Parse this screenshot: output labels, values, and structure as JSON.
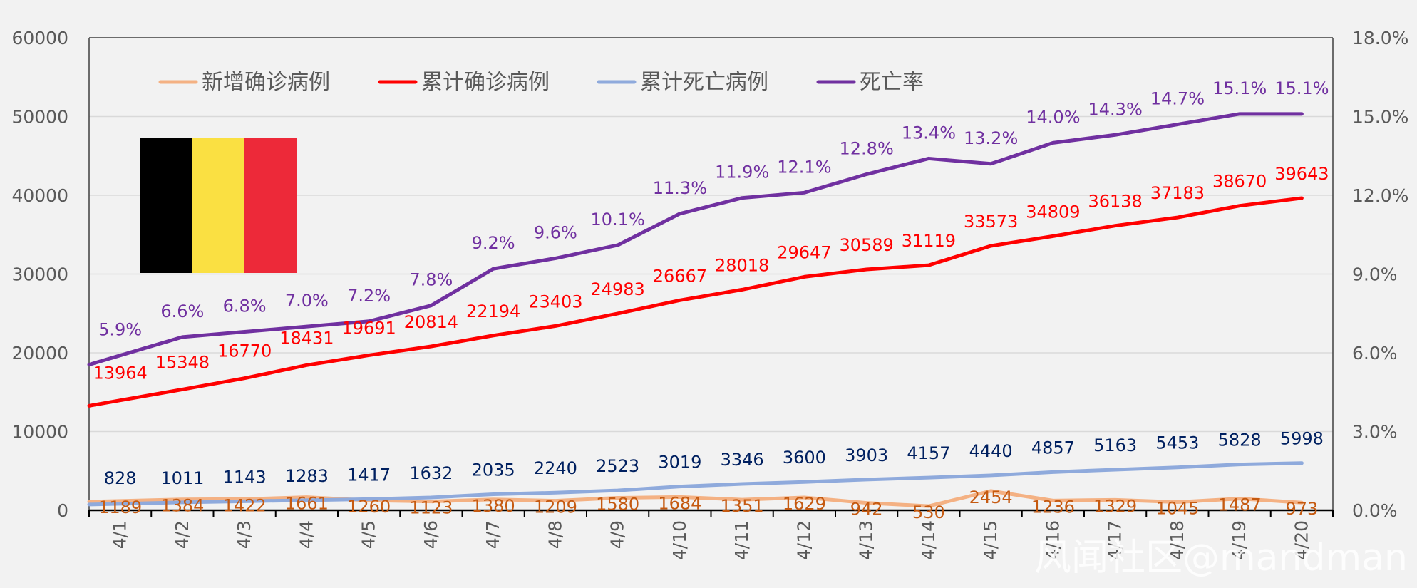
{
  "chart_data": {
    "type": "line",
    "categories": [
      "4/1",
      "4/2",
      "4/3",
      "4/4",
      "4/5",
      "4/6",
      "4/7",
      "4/8",
      "4/9",
      "4/10",
      "4/11",
      "4/12",
      "4/13",
      "4/14",
      "4/15",
      "4/16",
      "4/17",
      "4/18",
      "4/19",
      "4/20"
    ],
    "series": [
      {
        "name": "新增确诊病例",
        "color": "#f4b183",
        "label_color": "#c55a11",
        "axis": "left",
        "values": [
          1189,
          1384,
          1422,
          1661,
          1260,
          1123,
          1380,
          1209,
          1580,
          1684,
          1351,
          1629,
          942,
          530,
          2454,
          1236,
          1329,
          1045,
          1487,
          973
        ],
        "labels": [
          "1189",
          "1384",
          "1422",
          "1661",
          "1260",
          "1123",
          "1380",
          "1209",
          "1580",
          "1684",
          "1351",
          "1629",
          "942",
          "530",
          "2454",
          "1236",
          "1329",
          "1045",
          "1487",
          "973"
        ]
      },
      {
        "name": "累计确诊病例",
        "color": "#ff0000",
        "label_color": "#ff0000",
        "axis": "left",
        "values": [
          13964,
          15348,
          16770,
          18431,
          19691,
          20814,
          22194,
          23403,
          24983,
          26667,
          28018,
          29647,
          30589,
          31119,
          33573,
          34809,
          36138,
          37183,
          38670,
          39643
        ],
        "labels": [
          "13964",
          "15348",
          "16770",
          "18431",
          "19691",
          "20814",
          "22194",
          "23403",
          "24983",
          "26667",
          "28018",
          "29647",
          "30589",
          "31119",
          "33573",
          "34809",
          "36138",
          "37183",
          "38670",
          "39643"
        ]
      },
      {
        "name": "累计死亡病例",
        "color": "#8faadc",
        "label_color": "#002060",
        "axis": "left",
        "values": [
          828,
          1011,
          1143,
          1283,
          1417,
          1632,
          2035,
          2240,
          2523,
          3019,
          3346,
          3600,
          3903,
          4157,
          4440,
          4857,
          5163,
          5453,
          5828,
          5998
        ],
        "labels": [
          "828",
          "1011",
          "1143",
          "1283",
          "1417",
          "1632",
          "2035",
          "2240",
          "2523",
          "3019",
          "3346",
          "3600",
          "3903",
          "4157",
          "4440",
          "4857",
          "5163",
          "5453",
          "5828",
          "5998"
        ]
      },
      {
        "name": "死亡率",
        "color": "#7030a0",
        "label_color": "#7030a0",
        "axis": "right",
        "values": [
          5.9,
          6.6,
          6.8,
          7.0,
          7.2,
          7.8,
          9.2,
          9.6,
          10.1,
          11.3,
          11.9,
          12.1,
          12.8,
          13.4,
          13.2,
          14.0,
          14.3,
          14.7,
          15.1,
          15.1
        ],
        "labels": [
          "5.9%",
          "6.6%",
          "6.8%",
          "7.0%",
          "7.2%",
          "7.8%",
          "9.2%",
          "9.6%",
          "10.1%",
          "11.3%",
          "11.9%",
          "12.1%",
          "12.8%",
          "13.4%",
          "13.2%",
          "14.0%",
          "14.3%",
          "14.7%",
          "15.1%",
          "15.1%"
        ]
      }
    ],
    "ylim": [
      0,
      60000
    ],
    "y_ticks": [
      "0",
      "10000",
      "20000",
      "30000",
      "40000",
      "50000",
      "60000"
    ],
    "y2lim": [
      0,
      18
    ],
    "y2_ticks": [
      "0.0%",
      "3.0%",
      "6.0%",
      "9.0%",
      "12.0%",
      "15.0%",
      "18.0%"
    ],
    "grid": true,
    "legend_position": "top",
    "flag_colors": [
      "#000000",
      "#fae042",
      "#ed2939"
    ],
    "watermark": "风闻社区@mandman"
  }
}
